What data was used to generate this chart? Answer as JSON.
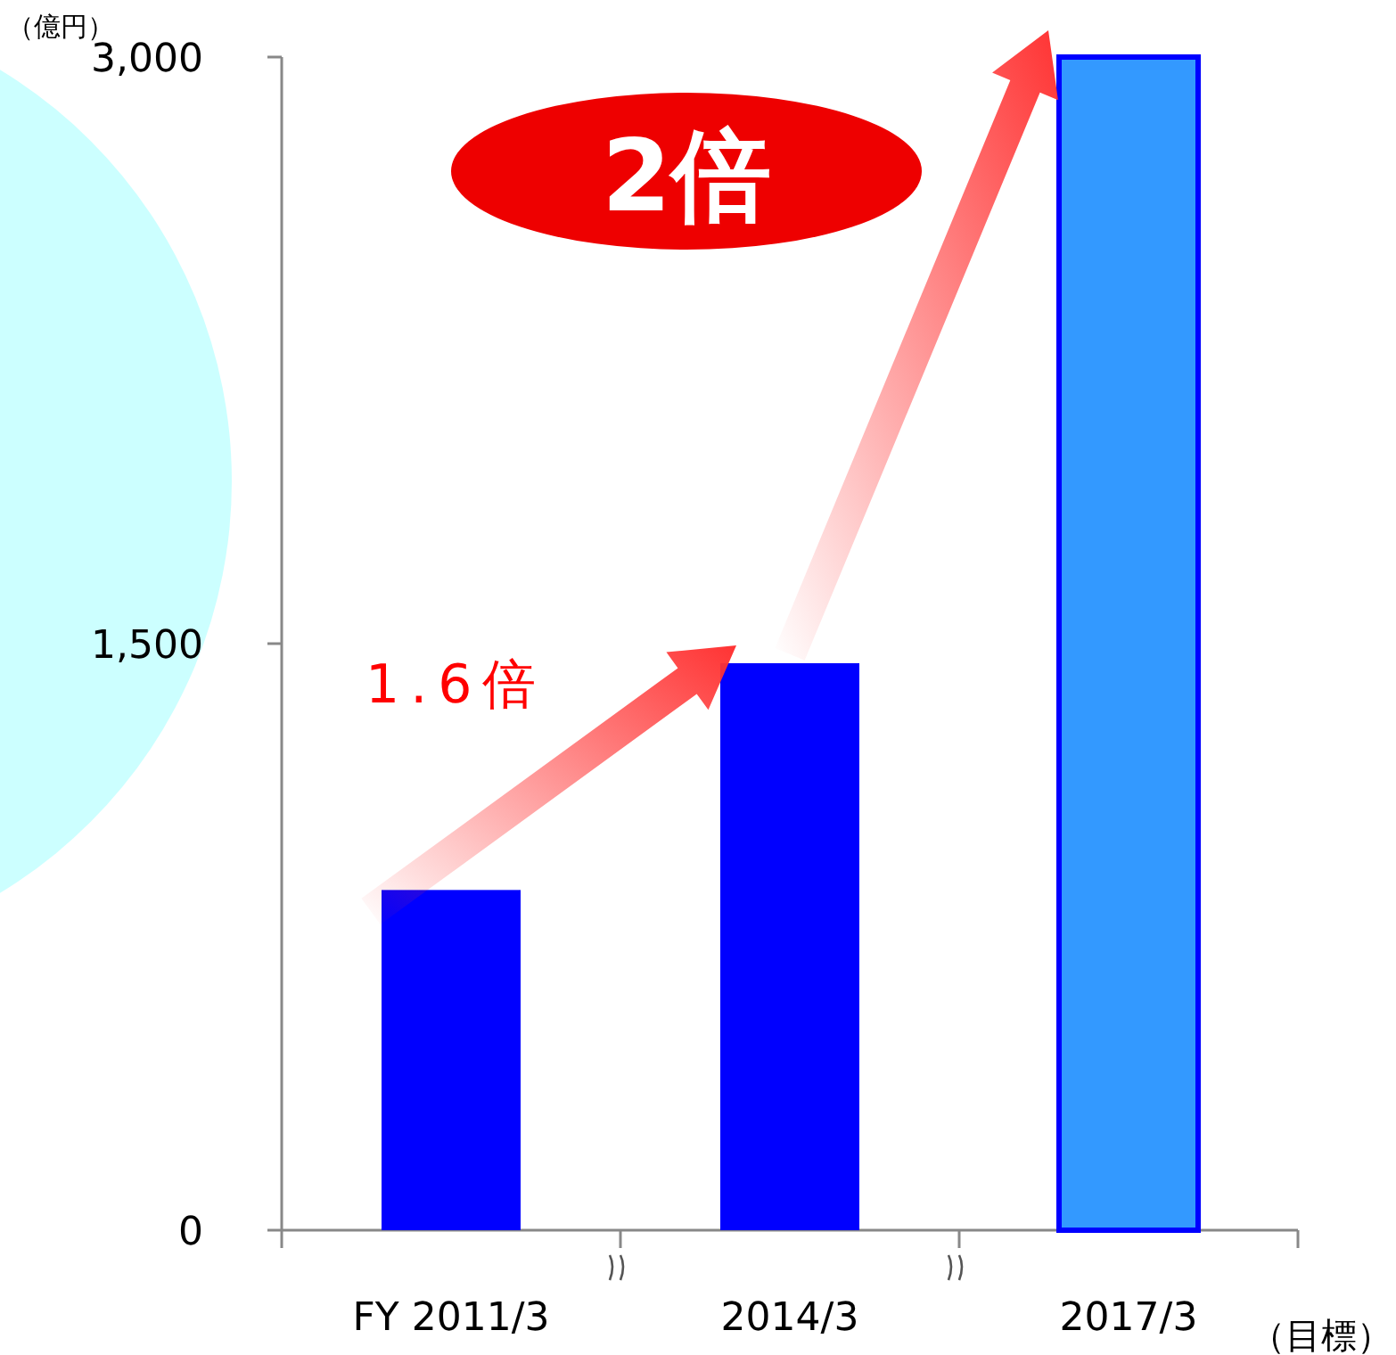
{
  "chart_data": {
    "type": "bar",
    "ylabel": "（億円）",
    "categories": [
      "FY 2011/3",
      "2014/3",
      "2017/3"
    ],
    "values": [
      870,
      1450,
      3000
    ],
    "colors": [
      "#0000ff",
      "#0000ff",
      "#3399ff"
    ],
    "ylim": [
      0,
      3000
    ],
    "yticks": [
      {
        "value": 0,
        "label": "0"
      },
      {
        "value": 1500,
        "label": "1,500"
      },
      {
        "value": 3000,
        "label": "3,000"
      }
    ],
    "annotations": [
      "1.6倍",
      "2倍",
      "（目標）"
    ]
  }
}
